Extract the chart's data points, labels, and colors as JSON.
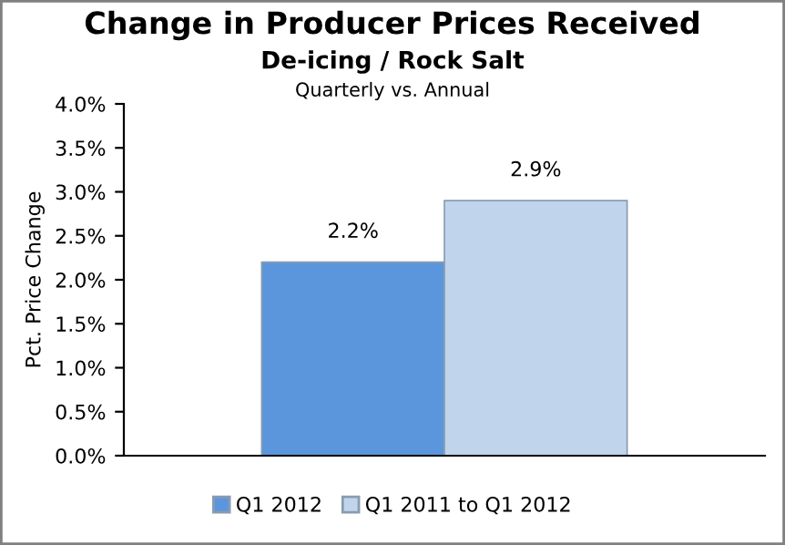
{
  "chart_data": {
    "type": "bar",
    "title": "Change in Producer Prices Received",
    "subtitle": "De-icing / Rock Salt",
    "annotations": [
      "Quarterly vs. Annual"
    ],
    "ylabel": "Pct. Price Change",
    "categories": [
      null
    ],
    "series": [
      {
        "name": "Q1 2012",
        "color": "#5b96dc",
        "values": [
          2.2
        ],
        "value_labels": [
          "2.2%"
        ]
      },
      {
        "name": "Q1 2011 to Q1 2012",
        "color": "#c0d5ec",
        "values": [
          2.9
        ],
        "value_labels": [
          "2.9%"
        ]
      }
    ],
    "ylim": [
      0,
      4
    ],
    "yticks": [
      {
        "value": 0,
        "label": "0.0%"
      },
      {
        "value": 0.5,
        "label": "0.5%"
      },
      {
        "value": 1,
        "label": "1.0%"
      },
      {
        "value": 1.5,
        "label": "1.5%"
      },
      {
        "value": 2,
        "label": "2.0%"
      },
      {
        "value": 2.5,
        "label": "2.5%"
      },
      {
        "value": 3,
        "label": "3.0%"
      },
      {
        "value": 3.5,
        "label": "3.5%"
      },
      {
        "value": 4,
        "label": "4.0%"
      }
    ],
    "grid": false,
    "legend": "bottom"
  }
}
